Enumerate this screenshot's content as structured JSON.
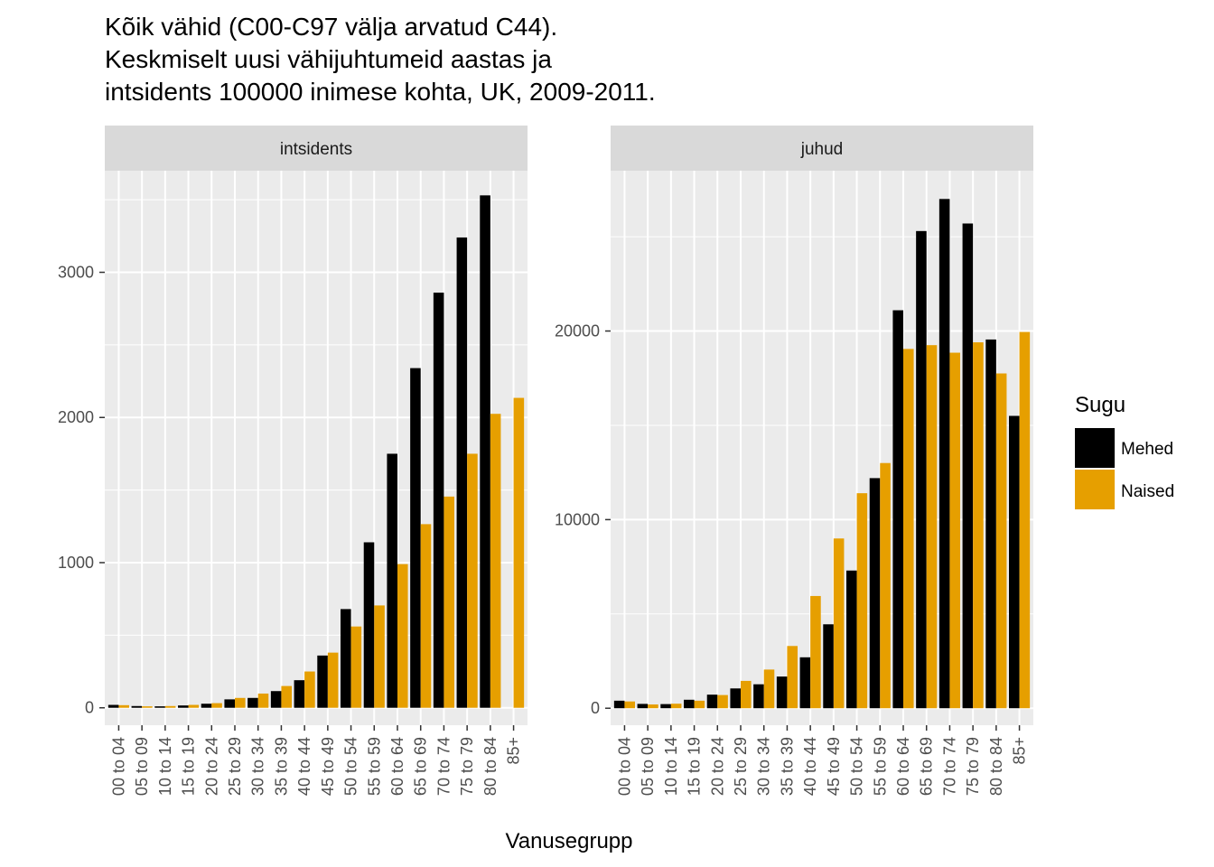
{
  "title_lines": [
    "Kõik vähid (C00-C97 välja arvatud C44).",
    "Keskmiselt uusi vähijuhtumeid aastas ja",
    "intsidents 100000 inimese kohta, UK, 2009-2011."
  ],
  "xlabel": "Vanusegrupp",
  "legend": {
    "title": "Sugu",
    "position": "right",
    "items": [
      {
        "label": "Mehed",
        "color": "#000000"
      },
      {
        "label": "Naised",
        "color": "#E69F00"
      }
    ]
  },
  "colors": {
    "panel_bg": "#EBEBEB",
    "strip_bg": "#D9D9D9",
    "grid": "#FFFFFF",
    "tick_text": "#4D4D4D"
  },
  "chart_data": [
    {
      "type": "bar",
      "facet": "intsidents",
      "grid": true,
      "categories": [
        "00 to 04",
        "05 to 09",
        "10 to 14",
        "15 to 19",
        "20 to 24",
        "25 to 29",
        "30 to 34",
        "35 to 39",
        "40 to 44",
        "45 to 49",
        "50 to 54",
        "55 to 59",
        "60 to 64",
        "65 to 69",
        "70 to 74",
        "75 to 79",
        "80 to 84",
        "85+"
      ],
      "series": [
        {
          "name": "Mehed",
          "values": [
            20,
            12,
            10,
            16,
            28,
            58,
            68,
            115,
            190,
            360,
            680,
            1140,
            1750,
            2340,
            2860,
            3240,
            3530,
            0
          ]
        },
        {
          "name": "Naised",
          "values": [
            18,
            10,
            12,
            20,
            32,
            68,
            98,
            150,
            250,
            380,
            560,
            705,
            990,
            1265,
            1455,
            1750,
            2025,
            2135
          ]
        }
      ],
      "ylim": [
        -120,
        3700
      ],
      "yticks": [
        0,
        1000,
        2000,
        3000
      ],
      "ytick_labels": [
        "0",
        "1000",
        "2000",
        "3000"
      ]
    },
    {
      "type": "bar",
      "facet": "juhud",
      "grid": true,
      "categories": [
        "00 to 04",
        "05 to 09",
        "10 to 14",
        "15 to 19",
        "20 to 24",
        "25 to 29",
        "30 to 34",
        "35 to 39",
        "40 to 44",
        "45 to 49",
        "50 to 54",
        "55 to 59",
        "60 to 64",
        "65 to 69",
        "70 to 74",
        "75 to 79",
        "80 to 84",
        "85+"
      ],
      "series": [
        {
          "name": "Mehed",
          "values": [
            400,
            230,
            220,
            450,
            720,
            1050,
            1270,
            1680,
            2700,
            4450,
            7300,
            12200,
            21100,
            25300,
            27000,
            25700,
            19550,
            15500
          ]
        },
        {
          "name": "Naised",
          "values": [
            360,
            200,
            240,
            400,
            700,
            1450,
            2050,
            3300,
            5950,
            9000,
            11400,
            13000,
            19050,
            19250,
            18850,
            19400,
            17750,
            19950
          ]
        }
      ],
      "ylim": [
        -900,
        28500
      ],
      "yticks": [
        0,
        10000,
        20000
      ],
      "ytick_labels": [
        "0",
        "10000",
        "20000"
      ]
    }
  ]
}
